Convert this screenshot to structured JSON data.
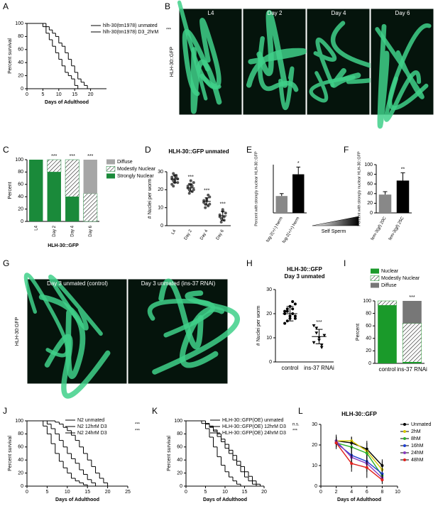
{
  "panel_letters": [
    "A",
    "B",
    "C",
    "D",
    "E",
    "F",
    "G",
    "H",
    "I",
    "J",
    "K",
    "L"
  ],
  "images": [
    {
      "label": "HLH-30::GFP",
      "frames": [
        "L4",
        "Day 2",
        "Day 4",
        "Day 6"
      ]
    },
    {
      "label": "HLH-30:GFP",
      "frames": [
        "Day 3 unmated (control)",
        "Day 3 unmated (ins-37 RNAi)"
      ]
    }
  ],
  "chart_data": [
    {
      "type": "step",
      "xlabel": "Days of Adulthood",
      "ylabel": "Percent survival",
      "xlim": [
        0,
        25
      ],
      "xticks": [
        0,
        5,
        10,
        15,
        20
      ],
      "ylim": [
        0,
        100
      ],
      "yticks": [
        0,
        20,
        40,
        60,
        80,
        100
      ],
      "series": [
        {
          "name": "hlh-30(tm1978) unmated",
          "color": "#000000",
          "x": [
            0,
            6,
            7,
            8,
            9,
            10,
            11,
            12,
            13,
            14,
            15,
            16,
            17,
            18,
            19
          ],
          "values": [
            100,
            95,
            90,
            85,
            80,
            70,
            65,
            55,
            45,
            35,
            25,
            15,
            10,
            5,
            0
          ]
        },
        {
          "name": "hlh-30(tm1978) D3_2hrM",
          "color": "#c0141c",
          "x": [
            0,
            5,
            6,
            7,
            8,
            9,
            10,
            11,
            12,
            13,
            14,
            15,
            16
          ],
          "values": [
            100,
            95,
            85,
            75,
            65,
            55,
            45,
            35,
            25,
            20,
            15,
            5,
            0
          ]
        }
      ],
      "sig": [
        "***"
      ]
    },
    {
      "type": "stacked_bar",
      "xlabel": "HLH-30::GFP",
      "ylabel": "Percent",
      "categories": [
        "L4",
        "Day 2",
        "Day 4",
        "Day 6"
      ],
      "ylim": [
        0,
        100
      ],
      "yticks": [
        0,
        20,
        40,
        60,
        80,
        100
      ],
      "series": [
        {
          "name": "Strongly Nuclear",
          "color": "#1a8a3a",
          "values": [
            100,
            80,
            40,
            0
          ]
        },
        {
          "name": "Modestly Nuclear",
          "color": "#1a8a3a",
          "hatch": true,
          "values": [
            0,
            20,
            60,
            45
          ]
        },
        {
          "name": "Diffuse",
          "color": "#a6a6a6",
          "values": [
            0,
            0,
            0,
            55
          ]
        }
      ],
      "sig": [
        null,
        "***",
        "***",
        "***"
      ]
    },
    {
      "type": "dot",
      "title": "HLH-30::GFP unmated",
      "ylabel": "# Nuclei per worm",
      "categories": [
        "L4",
        "Day 2",
        "Day 4",
        "Day 6"
      ],
      "ylim": [
        0,
        30
      ],
      "yticks": [
        0,
        10,
        20,
        30
      ],
      "color": "#555555",
      "points": [
        [
          27,
          25,
          24,
          28,
          26,
          23,
          29,
          25,
          27,
          24,
          26,
          22,
          28
        ],
        [
          22,
          20,
          23,
          19,
          24,
          21,
          18,
          25,
          22,
          20,
          21,
          23
        ],
        [
          14,
          12,
          15,
          11,
          16,
          13,
          10,
          14,
          17,
          12,
          13
        ],
        [
          6,
          4,
          8,
          3,
          7,
          5,
          2,
          9,
          5
        ]
      ],
      "means": [
        26,
        21,
        13.5,
        5.5
      ],
      "sd": [
        2,
        2,
        2,
        2.5
      ],
      "sig": [
        null,
        "***",
        "***",
        "***"
      ]
    },
    {
      "type": "bar",
      "ylabel": "Percent with strongly nuclear HLH-30::GFP",
      "categories": [
        "fog-2(+/-) herm",
        "fog-2(+/+) herm"
      ],
      "ylim": [
        0,
        20
      ],
      "values": [
        7,
        16
      ],
      "errors": [
        1,
        3
      ],
      "colors": [
        "#888888",
        "#000000"
      ],
      "sig": [
        null,
        "*"
      ],
      "annotation": "Self Sperm"
    },
    {
      "type": "bar",
      "ylabel": "Percent with strongly nuclear HLH-30::GFP",
      "categories": [
        "fem-3(gf) 20C",
        "fem-3(gf) 25C"
      ],
      "ylim": [
        0,
        100
      ],
      "yticks": [
        0,
        20,
        40,
        60,
        80,
        100
      ],
      "values": [
        38,
        67
      ],
      "errors": [
        6,
        16
      ],
      "colors": [
        "#888888",
        "#000000"
      ],
      "sig": [
        null,
        "**"
      ]
    },
    {
      "type": "dot",
      "title": "HLH-30::GFP",
      "subtitle": "Day 3 unmated",
      "ylabel": "# Nuclei per worm",
      "categories": [
        "control",
        "ins-37 RNAi"
      ],
      "ylim": [
        0,
        30
      ],
      "yticks": [
        0,
        10,
        20,
        30
      ],
      "color": "#000000",
      "markers": [
        "circle",
        "triangle"
      ],
      "points": [
        [
          20,
          22,
          18,
          25,
          19,
          21,
          17,
          23,
          20,
          24,
          16,
          21,
          19,
          22,
          18
        ],
        [
          15,
          12,
          9,
          6,
          11,
          8,
          14,
          10,
          7
        ]
      ],
      "means": [
        20,
        10.5
      ],
      "sd": [
        3,
        3
      ],
      "sig": [
        null,
        "***"
      ]
    },
    {
      "type": "stacked_bar",
      "ylabel": "Percent",
      "categories": [
        "control",
        "ins-37 RNAi"
      ],
      "ylim": [
        0,
        100
      ],
      "yticks": [
        0,
        20,
        40,
        60,
        80,
        100
      ],
      "series": [
        {
          "name": "Nuclear",
          "color": "#1a9a2a",
          "values": [
            93,
            2
          ]
        },
        {
          "name": "Modestly Nuclear",
          "color": "#1a9a2a",
          "hatch": true,
          "values": [
            7,
            62
          ]
        },
        {
          "name": "Diffuse",
          "color": "#777777",
          "values": [
            0,
            36
          ]
        }
      ],
      "sig": [
        null,
        "***"
      ]
    },
    {
      "type": "step",
      "xlabel": "Days of Adulthood",
      "ylabel": "Percent survival",
      "xlim": [
        0,
        25
      ],
      "xticks": [
        0,
        5,
        10,
        15,
        20,
        25
      ],
      "ylim": [
        0,
        100
      ],
      "yticks": [
        0,
        20,
        40,
        60,
        80,
        100
      ],
      "series": [
        {
          "name": "N2 unmated",
          "color": "#000000",
          "x": [
            0,
            7,
            8,
            9,
            10,
            11,
            12,
            13,
            14,
            15,
            16,
            17,
            18,
            19,
            20
          ],
          "values": [
            100,
            98,
            95,
            90,
            85,
            78,
            70,
            60,
            50,
            40,
            30,
            20,
            12,
            5,
            0
          ]
        },
        {
          "name": "N2 12hrM D3",
          "color": "#1a9a9a",
          "x": [
            0,
            5,
            6,
            7,
            8,
            9,
            10,
            11,
            12,
            13,
            14,
            15,
            16,
            17
          ],
          "values": [
            100,
            95,
            88,
            80,
            70,
            60,
            50,
            42,
            35,
            25,
            18,
            10,
            5,
            0
          ]
        },
        {
          "name": "N2 24hrM D3",
          "color": "#7b52b0",
          "x": [
            0,
            4,
            5,
            6,
            7,
            8,
            9,
            10,
            11,
            12,
            13,
            14,
            15
          ],
          "values": [
            100,
            92,
            80,
            65,
            50,
            38,
            28,
            20,
            12,
            8,
            5,
            2,
            0
          ]
        }
      ],
      "sig": [
        "***",
        "***"
      ]
    },
    {
      "type": "step",
      "xlabel": "Days of Adulthood",
      "ylabel": "Percent survival",
      "xlim": [
        0,
        20
      ],
      "xticks": [
        0,
        5,
        10,
        15,
        20
      ],
      "ylim": [
        0,
        100
      ],
      "yticks": [
        0,
        20,
        40,
        60,
        80,
        100
      ],
      "series": [
        {
          "name": "HLH-30::GFP(OE) unmated",
          "color": "#000000",
          "x": [
            0,
            5,
            6,
            7,
            8,
            9,
            10,
            11,
            12,
            13,
            14,
            15,
            16,
            17,
            18,
            19
          ],
          "values": [
            100,
            96,
            92,
            86,
            80,
            72,
            64,
            55,
            47,
            38,
            30,
            22,
            15,
            8,
            3,
            0
          ]
        },
        {
          "name": "HLH-30::GFP(OE) 12hrM D3",
          "color": "#1a9a9a",
          "x": [
            0,
            5,
            6,
            7,
            8,
            9,
            10,
            11,
            12,
            13,
            14,
            15,
            16,
            17,
            18
          ],
          "values": [
            100,
            95,
            90,
            84,
            76,
            68,
            58,
            50,
            40,
            32,
            22,
            14,
            8,
            3,
            0
          ]
        },
        {
          "name": "HLH-30::GFP(OE) 24hrM D3",
          "color": "#7b52b0",
          "x": [
            0,
            4,
            5,
            6,
            7,
            8,
            9,
            10,
            11,
            12,
            13,
            14
          ],
          "values": [
            100,
            96,
            88,
            75,
            60,
            45,
            32,
            22,
            14,
            8,
            3,
            0
          ]
        }
      ],
      "sig": [
        "n.s.",
        "***"
      ]
    },
    {
      "type": "line",
      "title": "HLH-30::GFP",
      "xlabel": "Days of Adulthood",
      "xlim": [
        0,
        10
      ],
      "xticks": [
        0,
        2,
        4,
        6,
        8,
        10
      ],
      "ylim": [
        0,
        30
      ],
      "yticks": [
        0,
        10,
        20,
        30
      ],
      "series": [
        {
          "name": "Unmated",
          "color": "#000000",
          "x": [
            2,
            4,
            6,
            8
          ],
          "values": [
            22,
            21,
            18,
            10
          ],
          "errors": [
            2,
            3,
            3,
            3
          ]
        },
        {
          "name": "2hM",
          "color": "#d8c800",
          "x": [
            2,
            4,
            6,
            8
          ],
          "values": [
            22,
            22,
            17,
            8
          ],
          "errors": [
            2,
            2,
            5,
            4
          ]
        },
        {
          "name": "8hM",
          "color": "#2ab02a",
          "x": [
            2,
            4,
            6,
            8
          ],
          "values": [
            21,
            19,
            16,
            5
          ],
          "errors": [
            2,
            3,
            3,
            3
          ]
        },
        {
          "name": "16hM",
          "color": "#1f3fd0",
          "x": [
            2,
            4,
            6,
            8
          ],
          "values": [
            21,
            15,
            12,
            6
          ],
          "errors": [
            3,
            4,
            3,
            3
          ]
        },
        {
          "name": "24hM",
          "color": "#8a3ac0",
          "x": [
            2,
            4,
            6,
            8
          ],
          "values": [
            22,
            14,
            11,
            4
          ],
          "errors": [
            3,
            5,
            4,
            2
          ]
        },
        {
          "name": "48hM",
          "color": "#e0201c",
          "x": [
            2,
            4,
            6,
            8
          ],
          "values": [
            21,
            11,
            9,
            3
          ],
          "errors": [
            2,
            4,
            5,
            2
          ]
        }
      ]
    }
  ]
}
